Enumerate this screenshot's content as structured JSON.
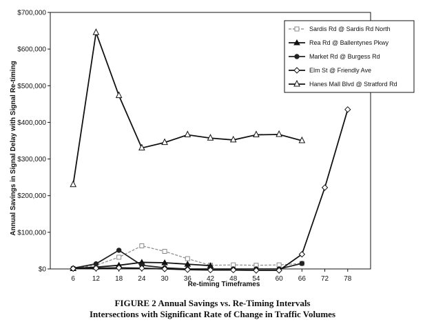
{
  "caption": {
    "line1": "FIGURE 2  Annual Savings vs.  Re-Timing Intervals",
    "line2": "Intersections with Significant Rate of Change in Traffic Volumes"
  },
  "chart_data": {
    "type": "line",
    "xlabel": "Re-timing Timeframes",
    "ylabel": "Annual Savings in Signal Delay with Signal Re-timing",
    "x_ticks": [
      6,
      12,
      18,
      24,
      30,
      36,
      42,
      48,
      54,
      60,
      66,
      72,
      78
    ],
    "y_ticks": [
      "$0",
      "$100,000",
      "$200,000",
      "$300,000",
      "$400,000",
      "$500,000",
      "$600,000",
      "$700,000"
    ],
    "ylim": [
      0,
      700000
    ],
    "legend_position": "top-right",
    "grid": false,
    "series": [
      {
        "name": "Sardis Rd @ Sardis Rd North",
        "marker": "open-square-dashed",
        "color": "#888888",
        "points": [
          [
            6,
            1000
          ],
          [
            12,
            10000
          ],
          [
            18,
            32000
          ],
          [
            24,
            63000
          ],
          [
            30,
            48000
          ],
          [
            36,
            28000
          ],
          [
            42,
            10000
          ],
          [
            48,
            11000
          ],
          [
            54,
            10000
          ],
          [
            60,
            11000
          ],
          [
            66,
            15000
          ]
        ]
      },
      {
        "name": "Rea Rd @ Ballentynes Pkwy",
        "marker": "filled-triangle",
        "color": "#111111",
        "points": [
          [
            6,
            1000
          ],
          [
            12,
            5000
          ],
          [
            18,
            10000
          ],
          [
            24,
            18000
          ],
          [
            30,
            17000
          ],
          [
            36,
            13000
          ],
          [
            42,
            9000
          ]
        ]
      },
      {
        "name": "Market Rd @ Burgess Rd",
        "marker": "filled-circle",
        "color": "#222222",
        "points": [
          [
            6,
            2000
          ],
          [
            12,
            14000
          ],
          [
            18,
            51000
          ],
          [
            24,
            10000
          ],
          [
            30,
            3000
          ],
          [
            36,
            0
          ],
          [
            42,
            0
          ],
          [
            48,
            0
          ],
          [
            54,
            0
          ],
          [
            60,
            0
          ],
          [
            66,
            15000
          ]
        ]
      },
      {
        "name": "Elm St @ Friendly Ave",
        "marker": "open-diamond",
        "color": "#111111",
        "points": [
          [
            6,
            1000
          ],
          [
            12,
            2000
          ],
          [
            18,
            3000
          ],
          [
            24,
            2000
          ],
          [
            30,
            0
          ],
          [
            36,
            -2000
          ],
          [
            42,
            -3000
          ],
          [
            48,
            -3000
          ],
          [
            54,
            -4000
          ],
          [
            60,
            -4000
          ],
          [
            66,
            40000
          ],
          [
            72,
            222000
          ],
          [
            78,
            435000
          ]
        ]
      },
      {
        "name": "Hanes Mall Blvd @ Stratford Rd",
        "marker": "open-triangle",
        "color": "#111111",
        "points": [
          [
            6,
            230000
          ],
          [
            12,
            645000
          ],
          [
            18,
            473000
          ],
          [
            24,
            330000
          ],
          [
            30,
            345000
          ],
          [
            36,
            366000
          ],
          [
            42,
            357000
          ],
          [
            48,
            352000
          ],
          [
            54,
            366000
          ],
          [
            60,
            367000
          ],
          [
            66,
            350000
          ]
        ]
      }
    ]
  }
}
